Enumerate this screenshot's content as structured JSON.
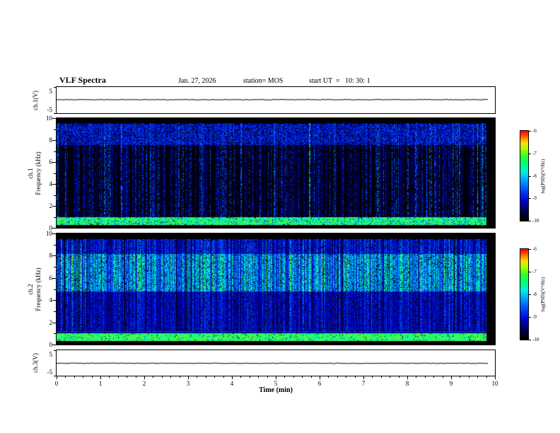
{
  "header": {
    "title": "VLF Spectra",
    "date": "Jan. 27, 2026",
    "station": "station= MOS",
    "start_ut": "start UT  =   10: 30: 1"
  },
  "colormap": [
    [
      0.0,
      "#000005"
    ],
    [
      0.1,
      "#00004a"
    ],
    [
      0.22,
      "#0000d0"
    ],
    [
      0.35,
      "#0050ff"
    ],
    [
      0.47,
      "#00b4ff"
    ],
    [
      0.55,
      "#00f0e0"
    ],
    [
      0.63,
      "#00ff78"
    ],
    [
      0.72,
      "#30ff30"
    ],
    [
      0.8,
      "#a8ff00"
    ],
    [
      0.87,
      "#ffe000"
    ],
    [
      0.93,
      "#ff7800"
    ],
    [
      1.0,
      "#ff0000"
    ]
  ],
  "chart_data": {
    "type": "heatmap",
    "title": "VLF Spectra",
    "x": {
      "label": "Time (min)",
      "range": [
        0,
        10
      ],
      "ticks": [
        0,
        1,
        2,
        3,
        4,
        5,
        6,
        7,
        8,
        9,
        10
      ],
      "minor_step": 0.2
    },
    "z": {
      "label": "log(PSD)(V²/Hz)",
      "range": [
        -10,
        -6
      ],
      "ticks": [
        -6,
        -7,
        -8,
        -9,
        -10
      ]
    },
    "panels": [
      {
        "id": "ch1-voltage",
        "kind": "line",
        "ylabel": "ch.1(V)",
        "yrange": [
          -5,
          5
        ],
        "yticks": [
          5,
          -5
        ],
        "flat_value": 0.3,
        "description": "nearly flat voltage trace near 0 V"
      },
      {
        "id": "ch1-spectrogram",
        "kind": "spectrogram",
        "ylabel1": "ch.1",
        "ylabel2": "Frequency (kHz)",
        "yrange": [
          0,
          10
        ],
        "yticks": [
          10,
          8,
          6,
          4,
          2,
          0
        ],
        "background_level": -10,
        "data_end_frac": 0.982,
        "seed": 20260127,
        "sim": {
          "streak_density": 0.52,
          "amp_base": 0.28,
          "amp_rand": 0.72,
          "idle_amp": 0.12,
          "strong_prob": 0.06,
          "strong_gain": 1.6,
          "gate": 0.55,
          "k1": 1.5,
          "k2": 1.0,
          "envelope": [
            [
              0.2,
              9.6,
              0.75
            ]
          ],
          "bands": [
            {
              "f_lo": 0.3,
              "f_hi": 1.0,
              "level": -7.7,
              "jitter": 1.4,
              "fill": 0.93,
              "note": "bright continuous band 0.3-1 kHz"
            },
            {
              "f_lo": 7.6,
              "f_hi": 9.5,
              "level": -9.2,
              "jitter": 1.1,
              "fill": 0.75,
              "note": "dense blue band 7.6-9.5 kHz"
            }
          ]
        },
        "description": "sparse vertical sferic streaks (mostly blue, occasional green/yellow) on black background"
      },
      {
        "id": "ch2-spectrogram",
        "kind": "spectrogram",
        "ylabel1": "ch.2",
        "ylabel2": "Frequency (kHz)",
        "yrange": [
          0,
          10
        ],
        "yticks": [
          10,
          8,
          6,
          4,
          2,
          0
        ],
        "background_level": -10,
        "data_end_frac": 0.982,
        "seed": 10301,
        "sim": {
          "streak_density": 0.96,
          "amp_base": 0.42,
          "amp_rand": 0.58,
          "idle_amp": 0.2,
          "strong_prob": 0.1,
          "strong_gain": 1.25,
          "gate": 0.85,
          "k1": 1.9,
          "k2": 1.1,
          "envelope": [
            [
              0.3,
              1.25,
              0.22
            ],
            [
              1.25,
              4.8,
              0.5
            ],
            [
              4.8,
              8.2,
              1.0
            ],
            [
              8.2,
              9.5,
              0.58
            ]
          ],
          "bands": [
            {
              "f_lo": 0.38,
              "f_hi": 1.08,
              "level": -7.5,
              "jitter": 1.2,
              "fill": 0.95,
              "note": "bright continuous band 0.4-1.1 kHz"
            },
            {
              "f_lo": 1.12,
              "f_hi": 1.22,
              "level": -9.0,
              "jitter": 0.5,
              "fill": 1.0,
              "note": "thin blue horizontal line near 1.2 kHz"
            }
          ]
        },
        "description": "dense activity: strong green/cyan band 5-8 kHz, blue streaks 1.5-9.5 kHz, black background"
      },
      {
        "id": "ch3-voltage",
        "kind": "line",
        "ylabel": "ch.3(V)",
        "yrange": [
          -5,
          5
        ],
        "yticks": [
          5,
          -5
        ],
        "flat_value": 0.0,
        "description": "flat voltage trace at 0 V"
      }
    ]
  }
}
